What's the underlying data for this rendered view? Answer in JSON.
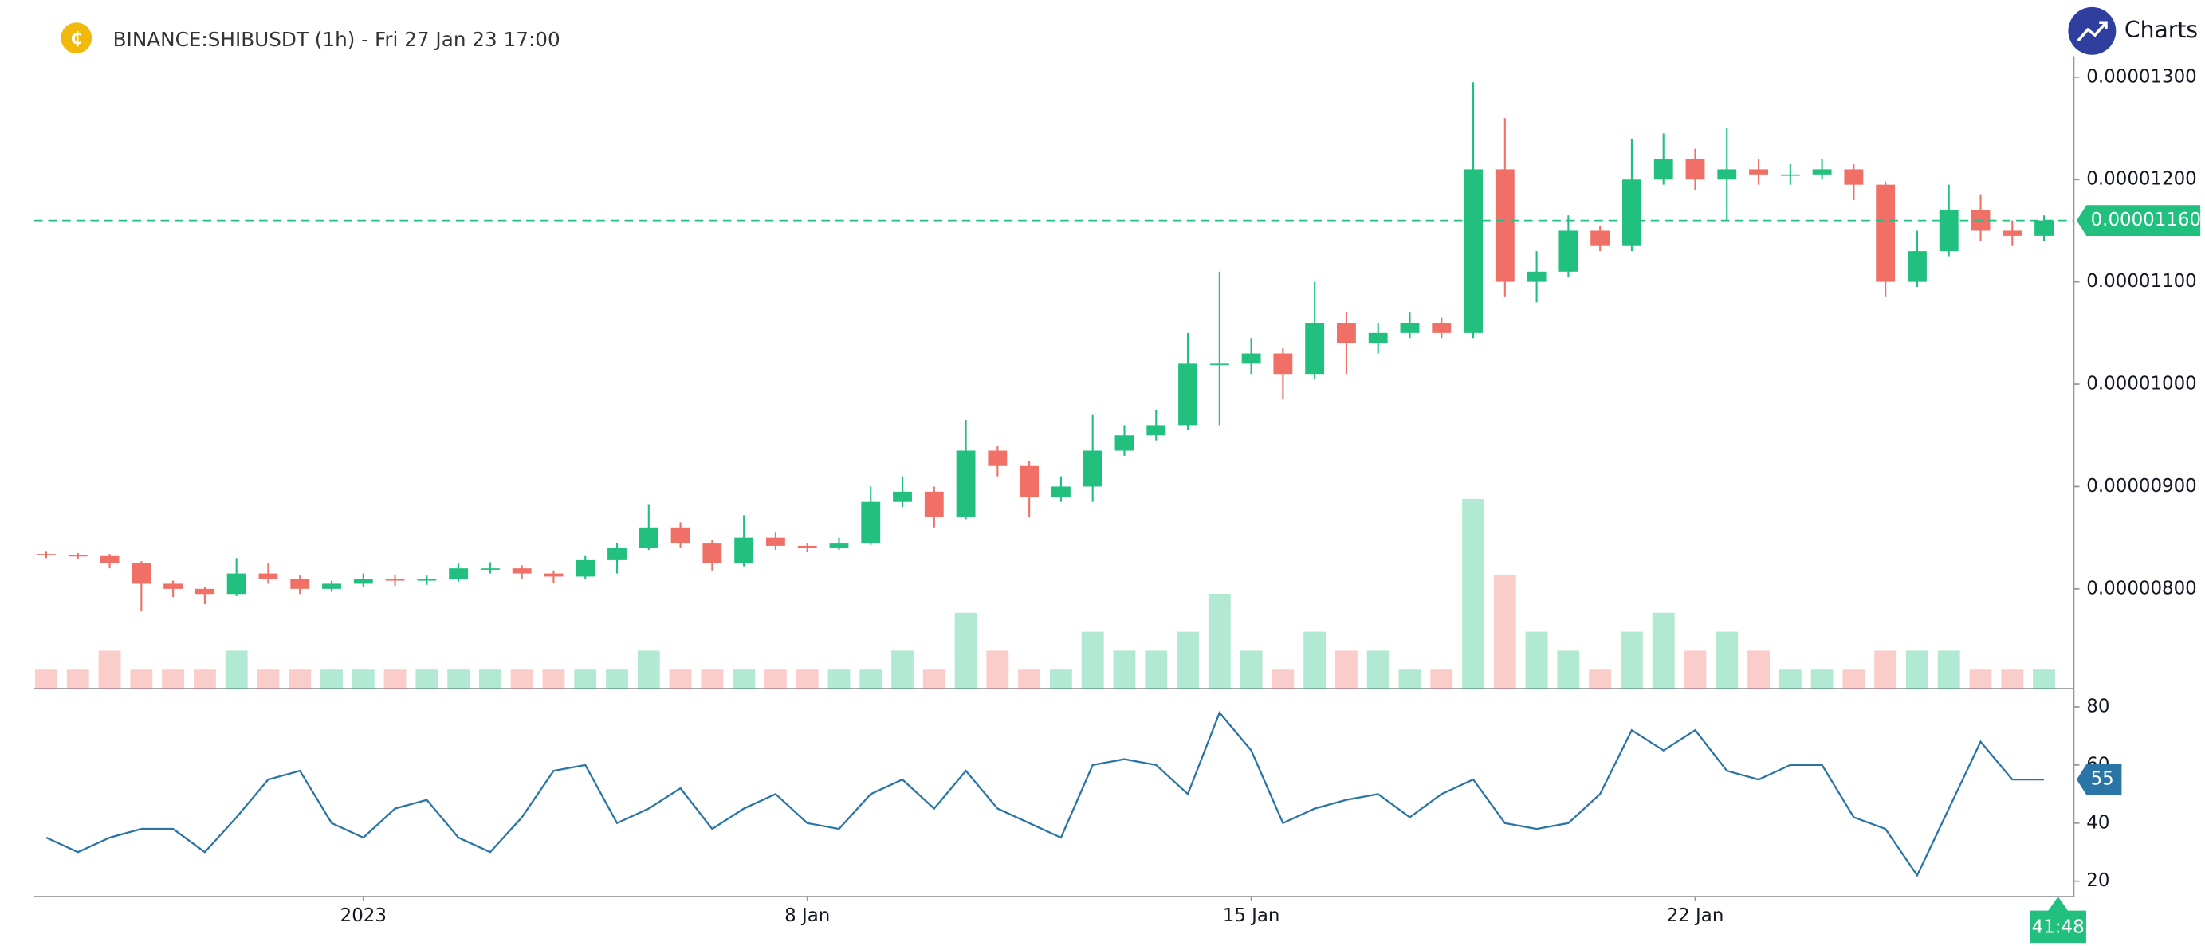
{
  "chart_data": {
    "type": "candlestick",
    "title": "BINANCE:SHIBUSDT (1h) - Fri 27 Jan 23 17:00",
    "brand": "Charts p",
    "up_color": "#22c07f",
    "down_color": "#f07068",
    "x": [
      -5,
      -4.5,
      -4,
      -3.5,
      -3,
      -2.5,
      -2,
      -1.5,
      -1,
      -0.5,
      0,
      0.5,
      1,
      1.5,
      2,
      2.5,
      3,
      3.5,
      4,
      4.5,
      5,
      5.5,
      6,
      6.5,
      7,
      7.5,
      8,
      8.5,
      9,
      9.5,
      10,
      10.5,
      11,
      11.5,
      12,
      12.5,
      13,
      13.5,
      14,
      14.5,
      15,
      15.5,
      16,
      16.5,
      17,
      17.5,
      18,
      18.5,
      19,
      19.5,
      20,
      20.5,
      21,
      21.5,
      22,
      22.5,
      23,
      23.5,
      24,
      24.5,
      25,
      25.5,
      26,
      26.5
    ],
    "open": [
      8.34e-06,
      8.33e-06,
      8.32e-06,
      8.25e-06,
      8.05e-06,
      8e-06,
      7.95e-06,
      8.15e-06,
      8.1e-06,
      8e-06,
      8.05e-06,
      8.1e-06,
      8.08e-06,
      8.1e-06,
      8.2e-06,
      8.2e-06,
      8.15e-06,
      8.12e-06,
      8.28e-06,
      8.4e-06,
      8.6e-06,
      8.45e-06,
      8.25e-06,
      8.5e-06,
      8.42e-06,
      8.4e-06,
      8.45e-06,
      8.85e-06,
      8.95e-06,
      8.7e-06,
      9.35e-06,
      9.2e-06,
      8.9e-06,
      9e-06,
      9.35e-06,
      9.5e-06,
      9.6e-06,
      1.02e-05,
      1.02e-05,
      1.03e-05,
      1.01e-05,
      1.06e-05,
      1.04e-05,
      1.05e-05,
      1.06e-05,
      1.05e-05,
      1.21e-05,
      1.1e-05,
      1.11e-05,
      1.15e-05,
      1.135e-05,
      1.2e-05,
      1.22e-05,
      1.2e-05,
      1.21e-05,
      1.205e-05,
      1.205e-05,
      1.21e-05,
      1.195e-05,
      1.1e-05,
      1.13e-05,
      1.17e-05,
      1.15e-05,
      1.145e-05
    ],
    "high": [
      8.37e-06,
      8.35e-06,
      8.34e-06,
      8.27e-06,
      8.08e-06,
      8.02e-06,
      8.3e-06,
      8.25e-06,
      8.13e-06,
      8.08e-06,
      8.15e-06,
      8.14e-06,
      8.13e-06,
      8.25e-06,
      8.26e-06,
      8.23e-06,
      8.18e-06,
      8.32e-06,
      8.45e-06,
      8.82e-06,
      8.65e-06,
      8.48e-06,
      8.72e-06,
      8.55e-06,
      8.45e-06,
      8.5e-06,
      9e-06,
      9.1e-06,
      9e-06,
      9.65e-06,
      9.4e-06,
      9.25e-06,
      9.1e-06,
      9.7e-06,
      9.6e-06,
      9.75e-06,
      1.05e-05,
      1.11e-05,
      1.045e-05,
      1.035e-05,
      1.1e-05,
      1.07e-05,
      1.06e-05,
      1.07e-05,
      1.065e-05,
      1.295e-05,
      1.26e-05,
      1.13e-05,
      1.165e-05,
      1.155e-05,
      1.24e-05,
      1.245e-05,
      1.23e-05,
      1.25e-05,
      1.22e-05,
      1.215e-05,
      1.22e-05,
      1.215e-05,
      1.198e-05,
      1.15e-05,
      1.195e-05,
      1.185e-05,
      1.16e-05,
      1.165e-05
    ],
    "low": [
      8.3e-06,
      8.29e-06,
      8.2e-06,
      7.78e-06,
      7.92e-06,
      7.85e-06,
      7.93e-06,
      8.05e-06,
      7.95e-06,
      7.97e-06,
      8.02e-06,
      8.03e-06,
      8.04e-06,
      8.07e-06,
      8.15e-06,
      8.1e-06,
      8.06e-06,
      8.1e-06,
      8.15e-06,
      8.38e-06,
      8.4e-06,
      8.18e-06,
      8.22e-06,
      8.38e-06,
      8.36e-06,
      8.38e-06,
      8.43e-06,
      8.8e-06,
      8.6e-06,
      8.68e-06,
      9.1e-06,
      8.7e-06,
      8.85e-06,
      8.85e-06,
      9.3e-06,
      9.45e-06,
      9.55e-06,
      9.6e-06,
      1.01e-05,
      9.85e-06,
      1.005e-05,
      1.01e-05,
      1.03e-05,
      1.045e-05,
      1.045e-05,
      1.045e-05,
      1.085e-05,
      1.08e-05,
      1.105e-05,
      1.13e-05,
      1.13e-05,
      1.195e-05,
      1.19e-05,
      1.16e-05,
      1.195e-05,
      1.195e-05,
      1.2e-05,
      1.18e-05,
      1.085e-05,
      1.095e-05,
      1.125e-05,
      1.14e-05,
      1.135e-05,
      1.14e-05
    ],
    "close": [
      8.33e-06,
      8.32e-06,
      8.25e-06,
      8.05e-06,
      8e-06,
      7.95e-06,
      8.15e-06,
      8.1e-06,
      8e-06,
      8.05e-06,
      8.1e-06,
      8.08e-06,
      8.1e-06,
      8.2e-06,
      8.2e-06,
      8.15e-06,
      8.12e-06,
      8.28e-06,
      8.4e-06,
      8.6e-06,
      8.45e-06,
      8.25e-06,
      8.5e-06,
      8.42e-06,
      8.4e-06,
      8.45e-06,
      8.85e-06,
      8.95e-06,
      8.7e-06,
      9.35e-06,
      9.2e-06,
      8.9e-06,
      9e-06,
      9.35e-06,
      9.5e-06,
      9.6e-06,
      1.02e-05,
      1.02e-05,
      1.03e-05,
      1.01e-05,
      1.06e-05,
      1.04e-05,
      1.05e-05,
      1.06e-05,
      1.05e-05,
      1.21e-05,
      1.1e-05,
      1.11e-05,
      1.15e-05,
      1.135e-05,
      1.2e-05,
      1.22e-05,
      1.2e-05,
      1.21e-05,
      1.205e-05,
      1.205e-05,
      1.21e-05,
      1.195e-05,
      1.1e-05,
      1.13e-05,
      1.17e-05,
      1.15e-05,
      1.145e-05,
      1.16e-05
    ],
    "volume": [
      1,
      1,
      2,
      1,
      1,
      1,
      2,
      1,
      1,
      1,
      1,
      1,
      1,
      1,
      1,
      1,
      1,
      1,
      1,
      2,
      1,
      1,
      1,
      1,
      1,
      1,
      1,
      2,
      1,
      4,
      2,
      1,
      1,
      3,
      2,
      2,
      3,
      5,
      2,
      1,
      3,
      2,
      2,
      1,
      1,
      10,
      6,
      3,
      2,
      1,
      3,
      4,
      2,
      3,
      2,
      1,
      1,
      1,
      2,
      2,
      2,
      1,
      1,
      1
    ],
    "xlim": [
      -5.19,
      26.97
    ],
    "xticks": [
      {
        "value": 0,
        "label": "2023"
      },
      {
        "value": 7,
        "label": "8 Jan"
      },
      {
        "value": 14,
        "label": "15 Jan"
      },
      {
        "value": 21,
        "label": "22 Jan"
      }
    ],
    "ylim": [
      7.025e-06,
      1.3205e-05
    ],
    "yticks": [
      {
        "value": 8e-06,
        "label": "0.00000800"
      },
      {
        "value": 9e-06,
        "label": "0.00000900"
      },
      {
        "value": 1e-05,
        "label": "0.00001000"
      },
      {
        "value": 1.1e-05,
        "label": "0.00001100"
      },
      {
        "value": 1.2e-05,
        "label": "0.00001200"
      },
      {
        "value": 1.3e-05,
        "label": "0.00001300"
      }
    ],
    "last_price_label": "0.00001160",
    "countdown": "41:48",
    "rsi": {
      "color": "#2a74a6",
      "values": [
        35,
        30,
        35,
        38,
        38,
        30,
        42,
        55,
        58,
        40,
        35,
        45,
        48,
        35,
        30,
        42,
        58,
        60,
        40,
        45,
        52,
        38,
        45,
        50,
        40,
        38,
        50,
        55,
        45,
        58,
        45,
        40,
        35,
        60,
        62,
        60,
        50,
        78,
        65,
        40,
        45,
        48,
        50,
        42,
        50,
        55,
        40,
        38,
        40,
        50,
        72,
        65,
        72,
        58,
        55,
        60,
        60,
        42,
        38,
        22,
        45,
        68,
        55,
        55
      ],
      "ylim": [
        14.7,
        86.3
      ],
      "yticks": [
        20,
        40,
        60,
        80
      ]
    }
  }
}
